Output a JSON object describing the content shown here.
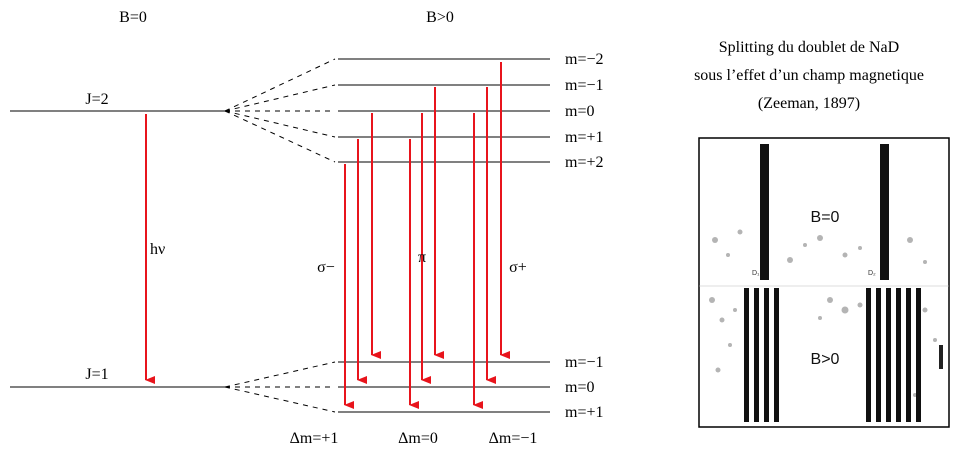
{
  "headers": {
    "b_zero": "B=0",
    "b_positive": "B>0"
  },
  "upper_level": {
    "label": "J=2",
    "sublevels": [
      "m=−2",
      "m=−1",
      "m=0",
      "m=+1",
      "m=+2"
    ]
  },
  "lower_level": {
    "label": "J=1",
    "sublevels": [
      "m=−1",
      "m=0",
      "m=+1"
    ]
  },
  "photon_label": "hν",
  "transition_groups": [
    {
      "polarization": "σ−",
      "delta_m": "Δm=+1"
    },
    {
      "polarization": "π",
      "delta_m": "Δm=0"
    },
    {
      "polarization": "σ+",
      "delta_m": "Δm=−1"
    }
  ],
  "caption": {
    "line1": "Splitting du doublet de NaD",
    "line2": "sous l’effet d’un champ magnetique",
    "line3": "(Zeeman, 1897)"
  },
  "spectrum_plate": {
    "top_label": "B=0",
    "bottom_label": "B>0",
    "line_labels": [
      "D₁",
      "D₂"
    ]
  },
  "colors": {
    "arrow": "#e8141c",
    "line": "#000000",
    "plate_ink": "#111111"
  }
}
